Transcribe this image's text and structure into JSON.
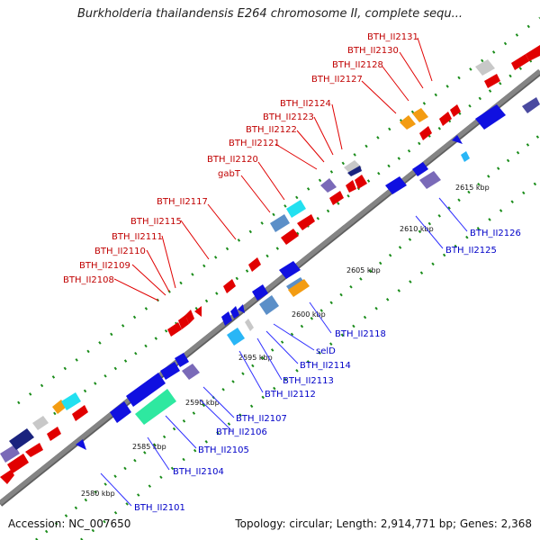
{
  "title": "Burkholderia thailandensis E264 chromosome II, complete sequ...",
  "accession_text": "Accession: NC_007650",
  "summary_text": "Topology: circular; Length: 2,914,771 bp; Genes: 2,368",
  "colors": {
    "backbone": "#8a8a8a",
    "tick": "#1a8c1a",
    "red_label": "#c00000",
    "blue_label": "#0000c8"
  },
  "kbp_labels": [
    "2580 kbp",
    "2585 kbp",
    "2590 kbp",
    "2595 kbp",
    "2600 kbp",
    "2605 kbp",
    "2610 kbp",
    "2615 kbp"
  ],
  "top_strand_labels": [
    "BTH_II2108",
    "BTH_II2109",
    "BTH_II2110",
    "BTH_II2111",
    "BTH_II2115",
    "BTH_II2117",
    "gabT",
    "BTH_II2120",
    "BTH_II2121",
    "BTH_II2122",
    "BTH_II2123",
    "BTH_II2124",
    "BTH_II2127",
    "BTH_II2128",
    "BTH_II2130",
    "BTH_II2131"
  ],
  "bottom_strand_labels": [
    "BTH_II2101",
    "BTH_II2104",
    "BTH_II2105",
    "BTH_II2106",
    "BTH_II2107",
    "BTH_II2112",
    "BTH_II2113",
    "BTH_II2114",
    "selD",
    "BTH_II2118",
    "BTH_II2125",
    "BTH_II2126"
  ]
}
